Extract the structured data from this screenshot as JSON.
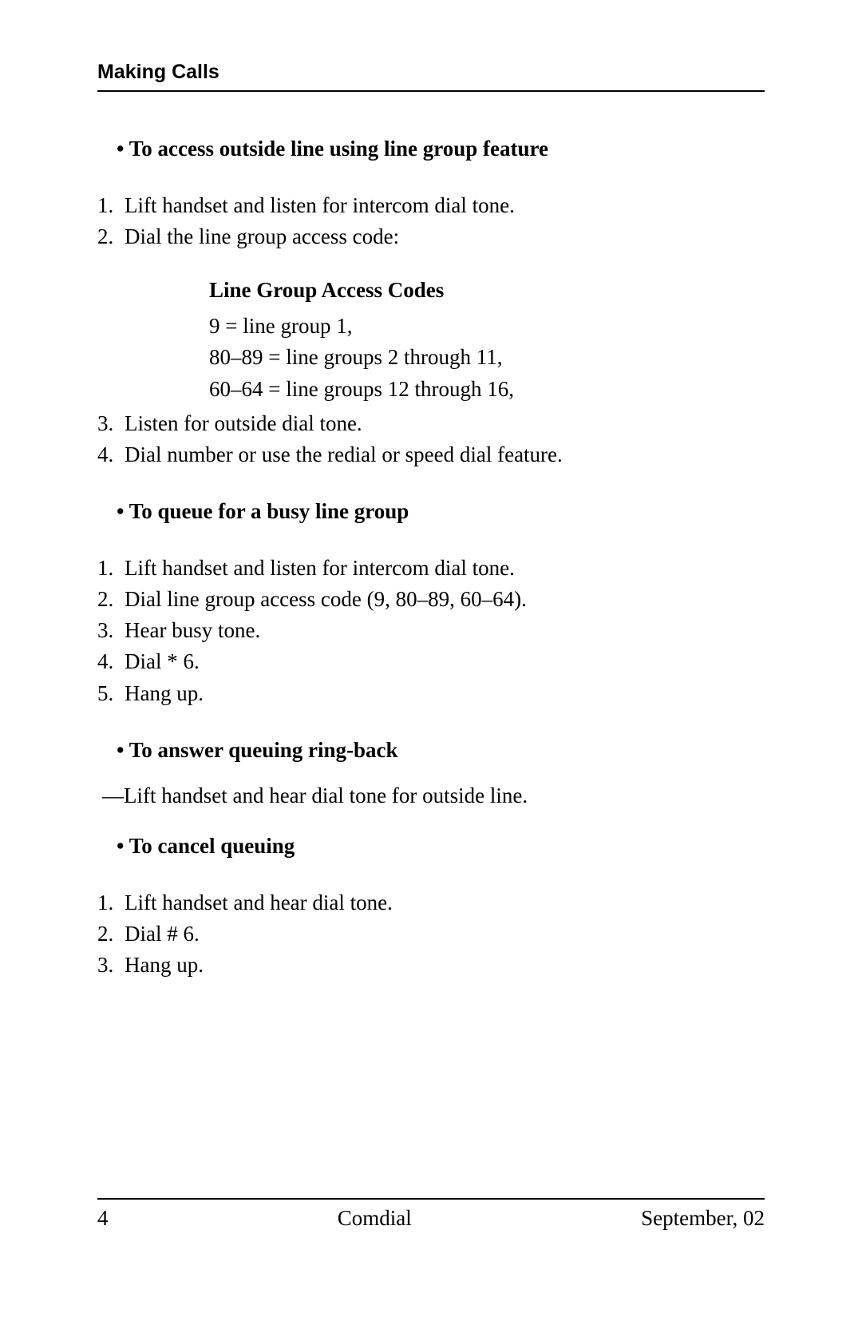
{
  "page": {
    "background_color": "#ffffff",
    "text_color": "#000000",
    "body_font": "Times New Roman",
    "header_font": "Arial",
    "body_fontsize_pt": 20,
    "heading_fontsize_pt": 20,
    "header_fontsize_pt": 18
  },
  "header": {
    "title": "Making Calls"
  },
  "content": {
    "section1": {
      "heading": "To access outside line using line group feature",
      "step1": "Lift handset and listen for intercom dial tone.",
      "step2": "Dial the line group access code:",
      "codes_title": "Line Group Access Codes",
      "code_line1": "9 = line group 1,",
      "code_line2": "80–89 = line groups 2 through 11,",
      "code_line3": "60–64 = line groups 12 through 16,",
      "step3": "Listen for outside dial tone.",
      "step4": "Dial number or use the redial or speed dial feature."
    },
    "section2": {
      "heading": "To queue for a busy line group",
      "step1": "Lift handset and listen for intercom dial tone.",
      "step2": "Dial line group access code (9, 80–89, 60–64).",
      "step3": "Hear busy tone.",
      "step4": "Dial * 6.",
      "step5": "Hang up."
    },
    "section3": {
      "heading": "To answer queuing ring-back",
      "dash_line": "—Lift handset and hear dial tone for outside line."
    },
    "section4": {
      "heading": "To cancel queuing",
      "step1": "Lift handset and hear dial tone.",
      "step2": "Dial # 6.",
      "step3": "Hang up."
    }
  },
  "footer": {
    "page_number": "4",
    "center": "Comdial",
    "right": "September, 02"
  }
}
